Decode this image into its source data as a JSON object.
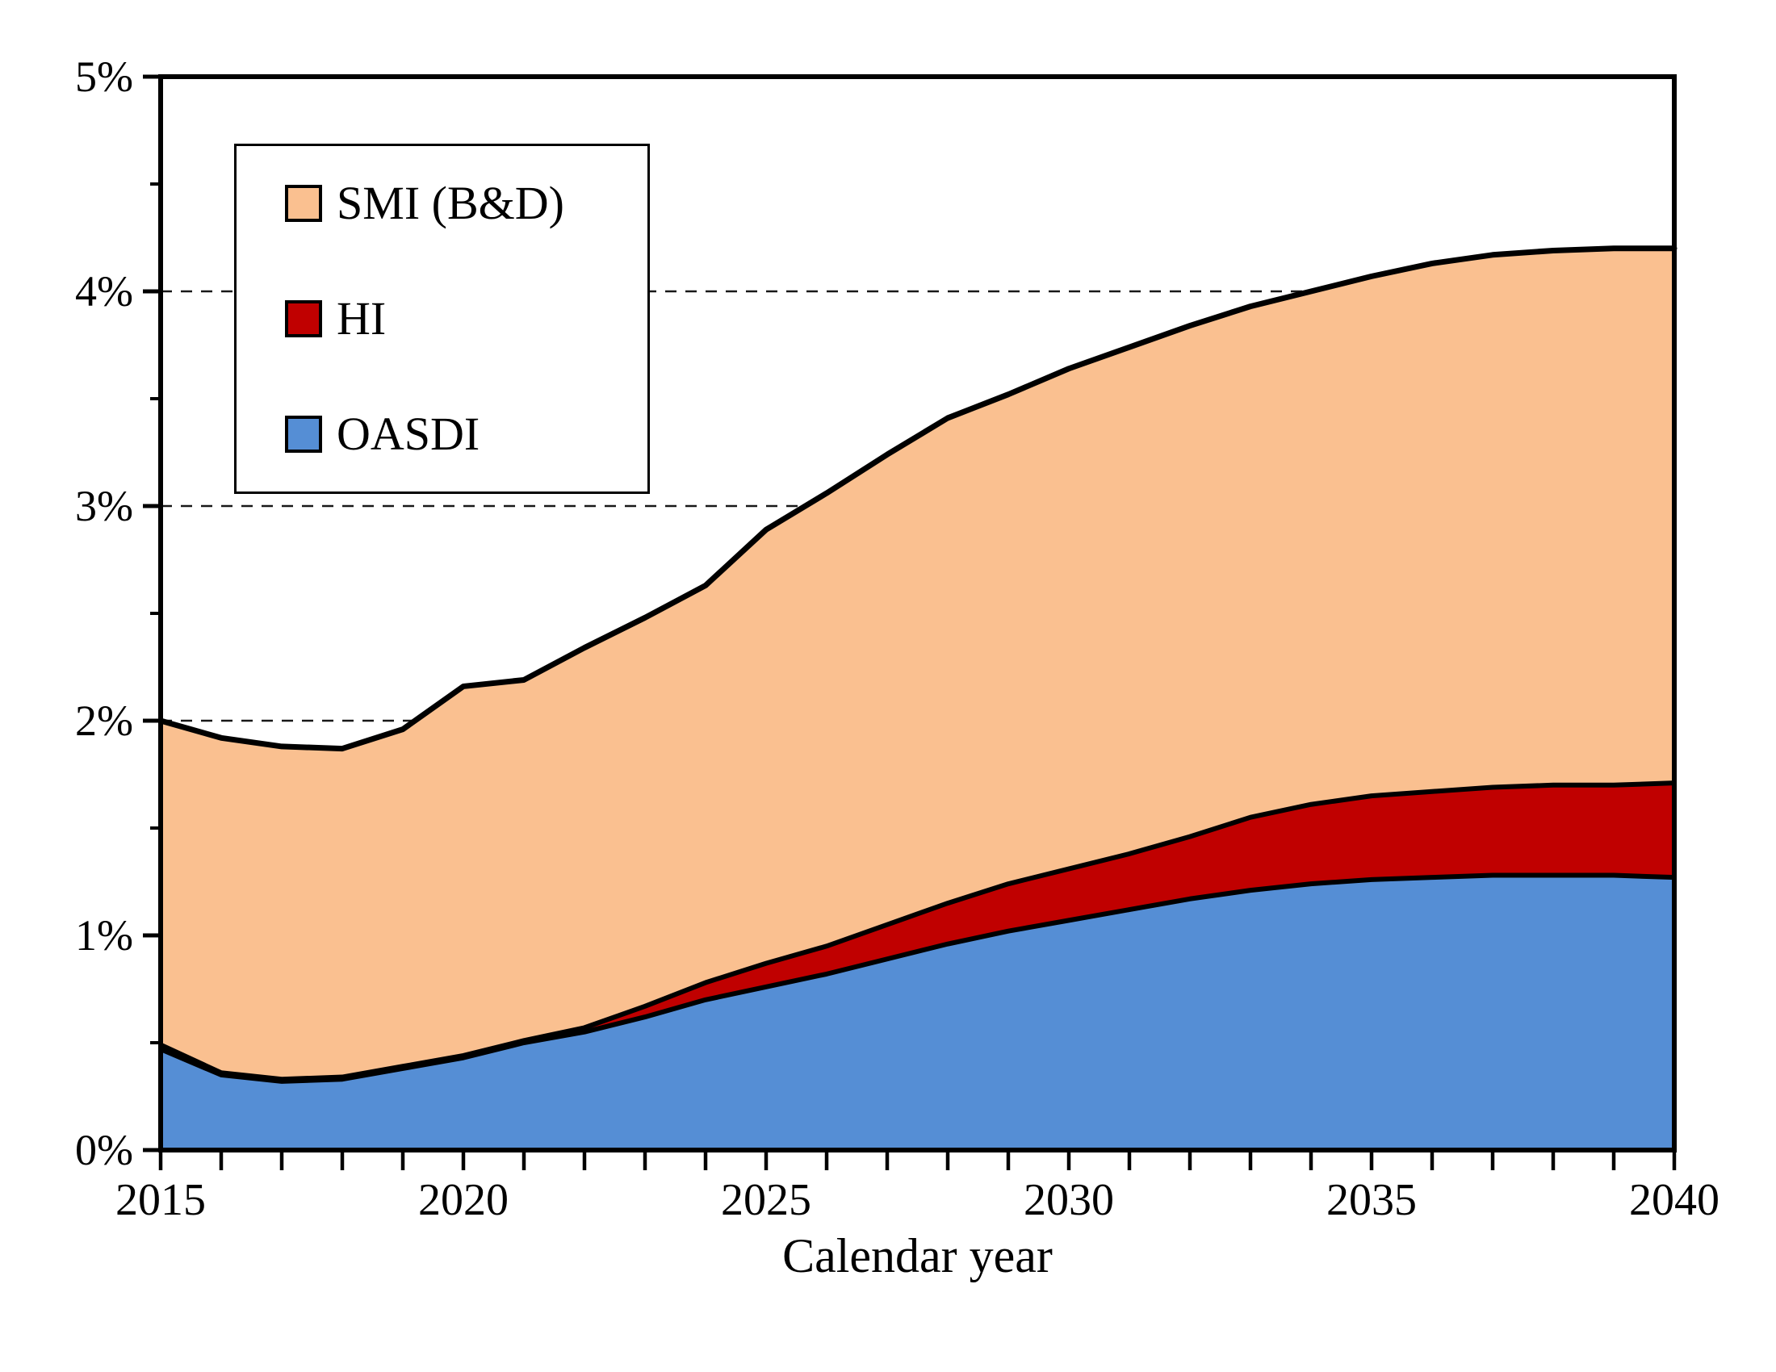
{
  "page": {
    "background_color": "#ffffff",
    "line_color": "#000000"
  },
  "chart_data": {
    "type": "area",
    "stacked": true,
    "title": "",
    "xlabel": "Calendar year",
    "ylabel": "",
    "grid": "dashed horizontal at 1% steps",
    "legend_position": "top-left inside plot",
    "x": [
      2015,
      2016,
      2017,
      2018,
      2019,
      2020,
      2021,
      2022,
      2023,
      2024,
      2025,
      2026,
      2027,
      2028,
      2029,
      2030,
      2031,
      2032,
      2033,
      2034,
      2035,
      2036,
      2037,
      2038,
      2039,
      2040
    ],
    "x_labeled_ticks": [
      2015,
      2020,
      2025,
      2030,
      2035,
      2040
    ],
    "x_minor_tick_step": 1,
    "y_axis": {
      "min": 0,
      "max": 5,
      "major_step": 1,
      "minor_step": 0.5,
      "tick_labels": [
        "0%",
        "1%",
        "2%",
        "3%",
        "4%",
        "5%"
      ],
      "gridlines_at": [
        1,
        2,
        3,
        4
      ]
    },
    "series": [
      {
        "name": "OASDI",
        "color": "#558ED5",
        "values": [
          0.47,
          0.35,
          0.32,
          0.33,
          0.38,
          0.43,
          0.5,
          0.55,
          0.62,
          0.7,
          0.76,
          0.82,
          0.89,
          0.96,
          1.02,
          1.07,
          1.12,
          1.17,
          1.21,
          1.24,
          1.26,
          1.27,
          1.28,
          1.28,
          1.28,
          1.27
        ]
      },
      {
        "name": "HI",
        "color": "#C00000",
        "values": [
          0.02,
          0.01,
          0.01,
          0.01,
          0.01,
          0.01,
          0.01,
          0.02,
          0.05,
          0.08,
          0.11,
          0.13,
          0.16,
          0.19,
          0.22,
          0.24,
          0.26,
          0.29,
          0.34,
          0.37,
          0.39,
          0.4,
          0.41,
          0.42,
          0.42,
          0.44
        ]
      },
      {
        "name": "SMI (B&D)",
        "color": "#FAC090",
        "values": [
          1.51,
          1.56,
          1.55,
          1.53,
          1.57,
          1.72,
          1.68,
          1.77,
          1.81,
          1.85,
          2.02,
          2.11,
          2.19,
          2.26,
          2.28,
          2.33,
          2.36,
          2.38,
          2.38,
          2.39,
          2.42,
          2.46,
          2.48,
          2.49,
          2.5,
          2.49
        ]
      }
    ],
    "totals_note": "stacked total rises from 2.0% in 2015 (dip to 1.87% in 2017-18) to 4.2% by 2038-2040",
    "legend": {
      "items": [
        {
          "label": "SMI (B&D)",
          "color": "#FAC090"
        },
        {
          "label": "HI",
          "color": "#C00000"
        },
        {
          "label": "OASDI",
          "color": "#558ED5"
        }
      ]
    }
  }
}
